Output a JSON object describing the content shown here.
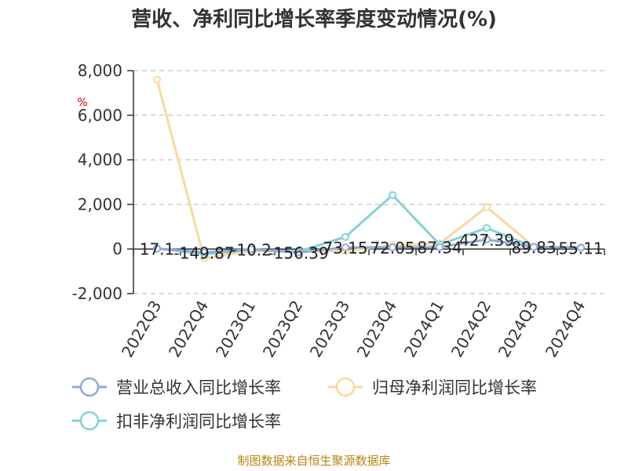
{
  "chart_data": {
    "type": "line",
    "title": "营收、净利同比增长率季度变动情况(%)",
    "unit_label": "%",
    "categories": [
      "2022Q3",
      "2022Q4",
      "2023Q1",
      "2023Q2",
      "2023Q3",
      "2023Q4",
      "2024Q1",
      "2024Q2",
      "2024Q3",
      "2024Q4"
    ],
    "ylim": [
      -2000,
      8000
    ],
    "yticks": [
      -2000,
      0,
      2000,
      4000,
      6000,
      8000
    ],
    "ytick_labels": [
      "-2,000",
      "0",
      "2,000",
      "4,000",
      "6,000",
      "8,000"
    ],
    "grid": true,
    "legend_position": "bottom-left",
    "series": [
      {
        "name": "营业总收入同比增长率",
        "color": "#8faadc",
        "values": [
          17.1,
          -149.87,
          -10.2,
          -156.39,
          73.15,
          72.05,
          87.34,
          427.39,
          89.83,
          55.11
        ],
        "data_labels": [
          "17.1",
          "-149.87",
          "-10.2",
          "-156.39",
          "73.15",
          "72.05",
          "87.34",
          "427.39",
          "89.83",
          "55.11"
        ]
      },
      {
        "name": "归母净利润同比增长率",
        "color": "#f9d99b",
        "values": [
          7600,
          -420,
          -80,
          -110,
          -90,
          160,
          240,
          1880,
          110,
          60
        ]
      },
      {
        "name": "扣非净利润同比增长率",
        "color": "#7fd3d8",
        "values": [
          30,
          -230,
          -30,
          -110,
          540,
          2420,
          200,
          940,
          90,
          70
        ]
      }
    ]
  },
  "footer": "制图数据来自恒生聚源数据库"
}
